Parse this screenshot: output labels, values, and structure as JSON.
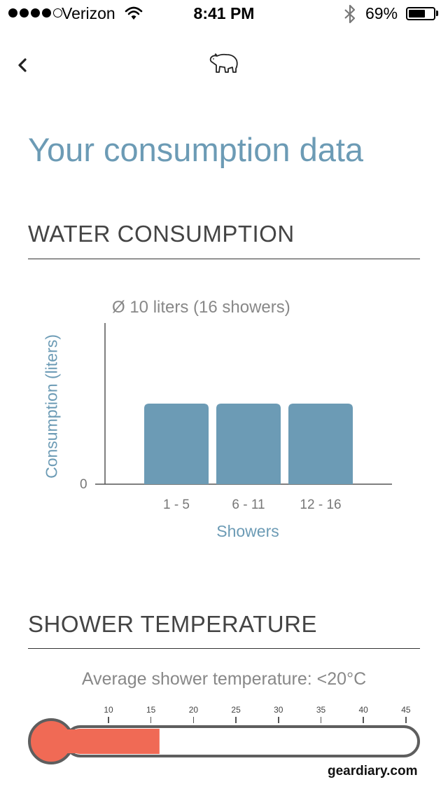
{
  "status_bar": {
    "carrier": "Verizon",
    "time": "8:41 PM",
    "battery_percent": "69%",
    "battery_level": 0.69,
    "signal_bars": 4,
    "signal_total": 5
  },
  "nav": {
    "back_icon": "chevron-left-icon",
    "logo_icon": "polar-bear-icon"
  },
  "page": {
    "title": "Your consumption data"
  },
  "water": {
    "section_title": "WATER CONSUMPTION",
    "subtitle": "Ø 10 liters (16 showers)",
    "chart_data": {
      "type": "bar",
      "categories": [
        "1 - 5",
        "6 - 11",
        "12 - 16"
      ],
      "values": [
        10,
        10,
        10
      ],
      "xlabel": "Showers",
      "ylabel": "Consumption (liters)",
      "y_tick_labels": [
        "0"
      ],
      "ylim": [
        0,
        20
      ],
      "bar_color": "#6c9bb5"
    }
  },
  "temperature": {
    "section_title": "SHOWER TEMPERATURE",
    "subtitle": "Average shower temperature: <20°C",
    "scale": [
      "10",
      "15",
      "20",
      "25",
      "30",
      "35",
      "40",
      "45"
    ],
    "level_celsius": 16,
    "fill_color": "#f06a55"
  },
  "watermark": "geardiary.com"
}
